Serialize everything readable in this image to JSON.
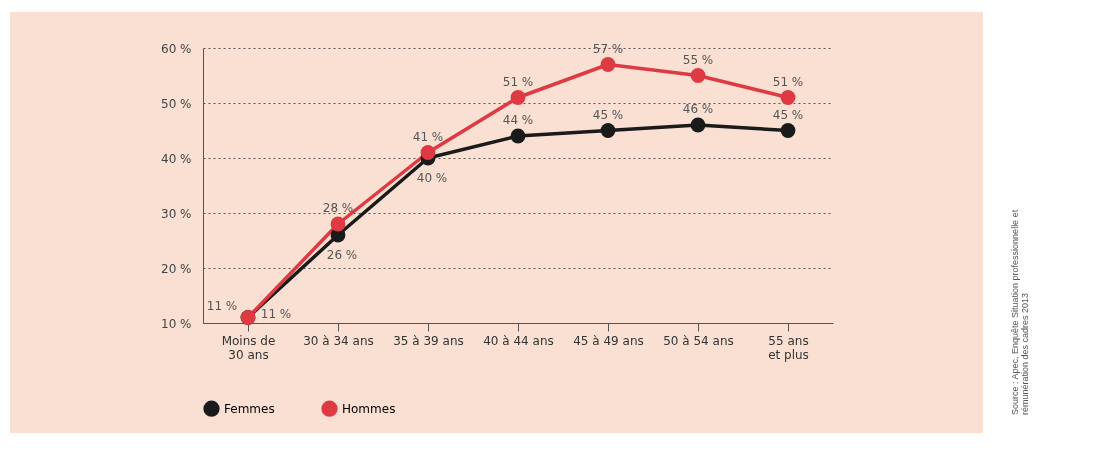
{
  "chart_data": {
    "type": "line",
    "categories": [
      "Moins de 30 ans",
      "30 à 34 ans",
      "35 à 39 ans",
      "40 à 44 ans",
      "45 à 49 ans",
      "50 à 54 ans",
      "55 ans et plus"
    ],
    "series": [
      {
        "name": "Femmes",
        "color": "#1a1a1a",
        "values": [
          11,
          26,
          40,
          44,
          45,
          46,
          45
        ],
        "value_labels": [
          "11 %",
          "26 %",
          "40 %",
          "44 %",
          "45 %",
          "46 %",
          "45 %"
        ]
      },
      {
        "name": "Hommes",
        "color": "#de3a44",
        "values": [
          11,
          28,
          41,
          51,
          57,
          55,
          51
        ],
        "value_labels": [
          "11 %",
          "28 %",
          "41 %",
          "51 %",
          "57 %",
          "55 %",
          "51 %"
        ]
      }
    ],
    "ylim": [
      10,
      60
    ],
    "yticks": [
      {
        "value": 10,
        "label": "10 %"
      },
      {
        "value": 20,
        "label": "20 %"
      },
      {
        "value": 30,
        "label": "30 %"
      },
      {
        "value": 40,
        "label": "40 %"
      },
      {
        "value": 50,
        "label": "50 %"
      },
      {
        "value": 60,
        "label": "60 %"
      }
    ],
    "grid": "y",
    "legend": "bottom",
    "marker": "circle",
    "line_style": "solid",
    "annotations": [
      "Source : Apec, Enquête Situation professionnelle et rémunération des cadres 2013"
    ]
  }
}
